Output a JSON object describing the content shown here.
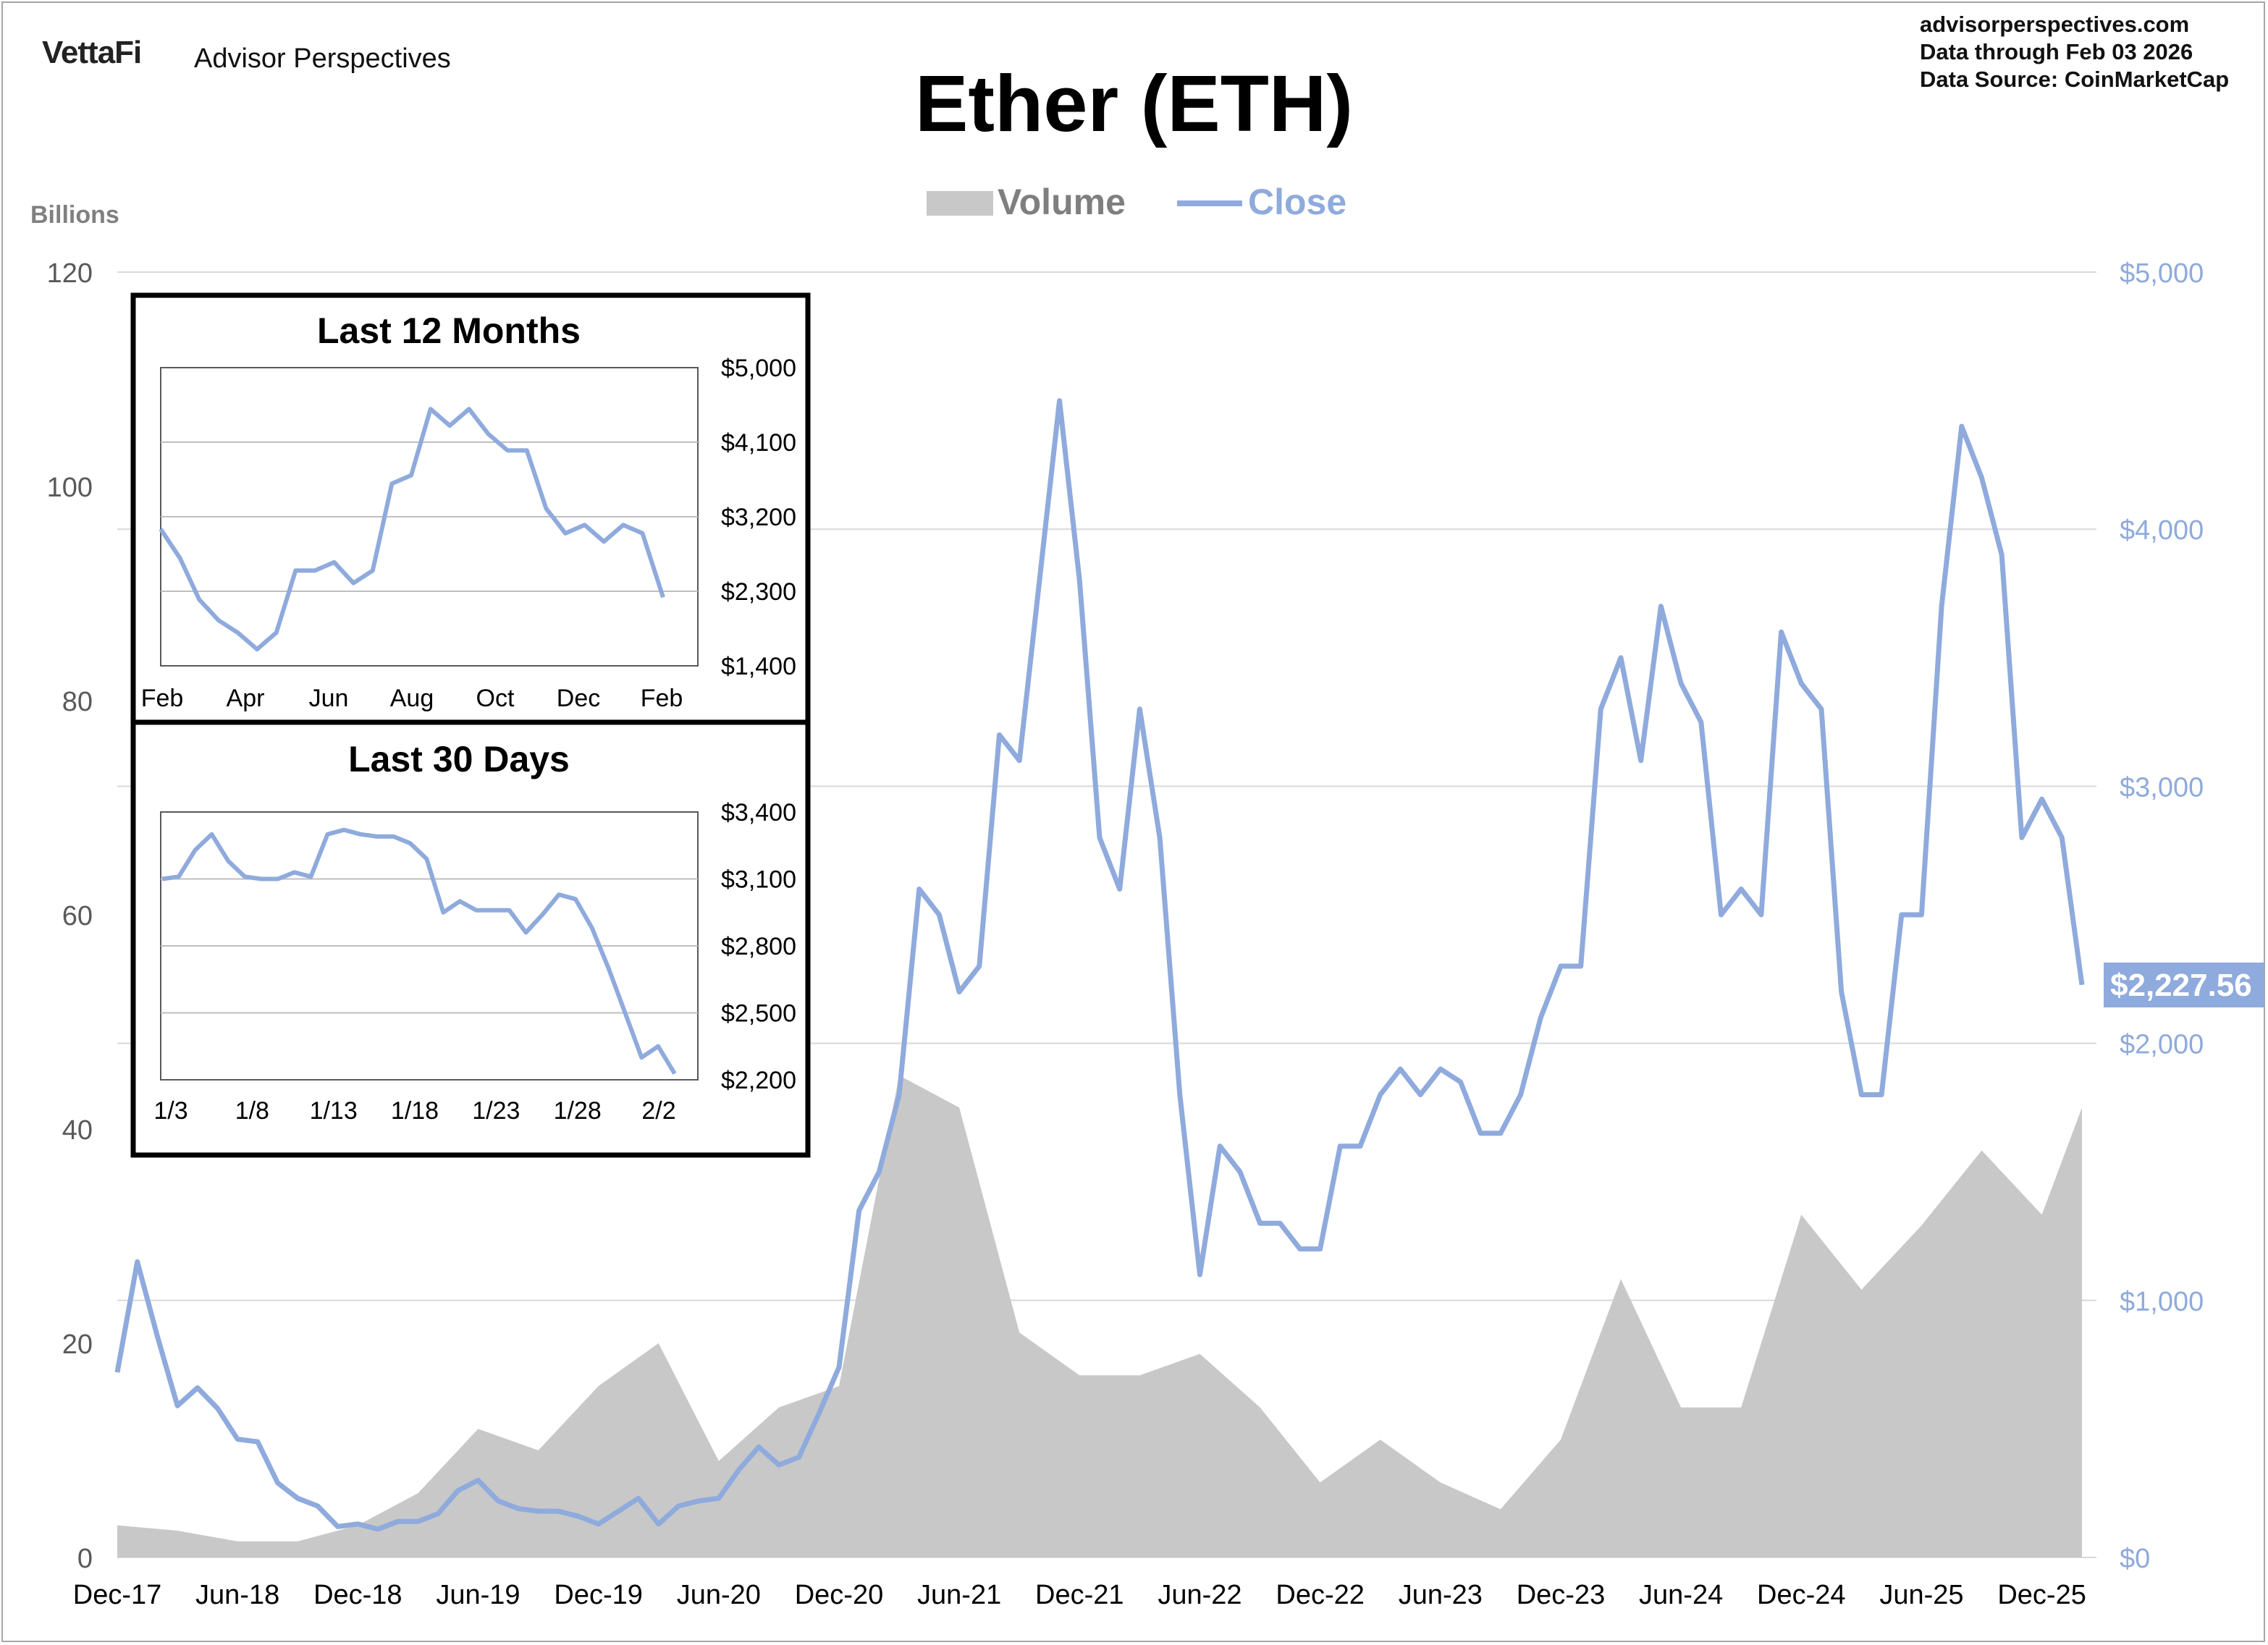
{
  "header": {
    "brand": "VettaFi",
    "brand_sub": "Advisor Perspectives",
    "site": "advisorperspectives.com",
    "data_through": "Data through  Feb 03 2026",
    "data_source": "Data Source:  CoinMarketCap",
    "title": "Ether (ETH)"
  },
  "colors": {
    "close": "#8faadc",
    "volume": "#c8c8c8",
    "grid": "#d9d9d9",
    "left_axis_text": "#595959",
    "price_flag": "#8faadc"
  },
  "chart_data": [
    {
      "type": "line",
      "title": "Ether (ETH)",
      "ylabel": "Billions",
      "legend": [
        "Volume",
        "Close"
      ],
      "legend_position": "top-center",
      "x_ticks": [
        "Dec-17",
        "Jun-18",
        "Dec-18",
        "Jun-19",
        "Dec-19",
        "Jun-20",
        "Dec-20",
        "Jun-21",
        "Dec-21",
        "Jun-22",
        "Dec-22",
        "Jun-23",
        "Dec-23",
        "Jun-24",
        "Dec-24",
        "Jun-25",
        "Dec-25"
      ],
      "y_left": {
        "label": "Billions",
        "ticks": [
          "0",
          "20",
          "40",
          "60",
          "80",
          "100",
          "120"
        ],
        "lim": [
          0,
          120
        ]
      },
      "y_right": {
        "ticks": [
          "$0",
          "$1,000",
          "$2,000",
          "$3,000",
          "$4,000",
          "$5,000"
        ],
        "lim": [
          0,
          5000
        ]
      },
      "last_close_label": "$2,227.56",
      "grid": true,
      "series": [
        {
          "name": "Close",
          "axis": "right",
          "x": [
            "2017-12",
            "2018-01",
            "2018-02",
            "2018-03",
            "2018-04",
            "2018-05",
            "2018-06",
            "2018-07",
            "2018-08",
            "2018-09",
            "2018-10",
            "2018-11",
            "2018-12",
            "2019-01",
            "2019-02",
            "2019-03",
            "2019-04",
            "2019-05",
            "2019-06",
            "2019-07",
            "2019-08",
            "2019-09",
            "2019-10",
            "2019-11",
            "2019-12",
            "2020-01",
            "2020-02",
            "2020-03",
            "2020-04",
            "2020-05",
            "2020-06",
            "2020-07",
            "2020-08",
            "2020-09",
            "2020-10",
            "2020-11",
            "2020-12",
            "2021-01",
            "2021-02",
            "2021-03",
            "2021-04",
            "2021-05",
            "2021-06",
            "2021-07",
            "2021-08",
            "2021-09",
            "2021-10",
            "2021-11",
            "2021-12",
            "2022-01",
            "2022-02",
            "2022-03",
            "2022-04",
            "2022-05",
            "2022-06",
            "2022-07",
            "2022-08",
            "2022-09",
            "2022-10",
            "2022-11",
            "2022-12",
            "2023-01",
            "2023-02",
            "2023-03",
            "2023-04",
            "2023-05",
            "2023-06",
            "2023-07",
            "2023-08",
            "2023-09",
            "2023-10",
            "2023-11",
            "2023-12",
            "2024-01",
            "2024-02",
            "2024-03",
            "2024-04",
            "2024-05",
            "2024-06",
            "2024-07",
            "2024-08",
            "2024-09",
            "2024-10",
            "2024-11",
            "2024-12",
            "2025-01",
            "2025-02",
            "2025-03",
            "2025-04",
            "2025-05",
            "2025-06",
            "2025-07",
            "2025-08",
            "2025-09",
            "2025-10",
            "2025-11",
            "2025-12",
            "2026-01",
            "2026-02"
          ],
          "values": [
            720,
            1150,
            860,
            590,
            660,
            580,
            460,
            450,
            290,
            230,
            200,
            120,
            130,
            110,
            140,
            140,
            170,
            260,
            300,
            220,
            190,
            180,
            180,
            160,
            130,
            180,
            230,
            130,
            200,
            220,
            230,
            340,
            430,
            360,
            390,
            560,
            740,
            1350,
            1500,
            1800,
            2600,
            2500,
            2200,
            2300,
            3200,
            3100,
            3800,
            4500,
            3800,
            2800,
            2600,
            3300,
            2800,
            1800,
            1100,
            1600,
            1500,
            1300,
            1300,
            1200,
            1200,
            1600,
            1600,
            1800,
            1900,
            1800,
            1900,
            1850,
            1650,
            1650,
            1800,
            2100,
            2300,
            2300,
            3300,
            3500,
            3100,
            3700,
            3400,
            3250,
            2500,
            2600,
            2500,
            3600,
            3400,
            3300,
            2200,
            1800,
            1800,
            2500,
            2500,
            3700,
            4400,
            4200,
            3900,
            2800,
            2950,
            2800,
            2227.56
          ]
        },
        {
          "name": "Volume",
          "axis": "left",
          "x": [
            "2017-12",
            "2018-03",
            "2018-06",
            "2018-09",
            "2018-12",
            "2019-03",
            "2019-06",
            "2019-09",
            "2019-12",
            "2020-03",
            "2020-06",
            "2020-09",
            "2020-12",
            "2021-03",
            "2021-06",
            "2021-09",
            "2021-12",
            "2022-03",
            "2022-06",
            "2022-09",
            "2022-12",
            "2023-03",
            "2023-06",
            "2023-09",
            "2023-12",
            "2024-03",
            "2024-06",
            "2024-09",
            "2024-12",
            "2025-03",
            "2025-06",
            "2025-09",
            "2025-12",
            "2026-02"
          ],
          "values": [
            3,
            2.5,
            1.5,
            1.5,
            3,
            6,
            12,
            10,
            16,
            20,
            9,
            14,
            16,
            45,
            42,
            21,
            17,
            17,
            19,
            14,
            7,
            11,
            7,
            4.5,
            11,
            26,
            14,
            14,
            32,
            25,
            31,
            38,
            32,
            42
          ]
        }
      ]
    },
    {
      "type": "line",
      "title": "Last 12 Months",
      "x_ticks": [
        "Feb",
        "Apr",
        "Jun",
        "Aug",
        "Oct",
        "Dec",
        "Feb"
      ],
      "y_ticks": [
        "$5,000",
        "$4,100",
        "$3,200",
        "$2,300",
        "$1,400"
      ],
      "ylim": [
        1400,
        5000
      ],
      "x": [
        "2025-02-03",
        "2025-02-17",
        "2025-03-03",
        "2025-03-17",
        "2025-03-31",
        "2025-04-14",
        "2025-04-28",
        "2025-05-12",
        "2025-05-26",
        "2025-06-09",
        "2025-06-23",
        "2025-07-07",
        "2025-07-21",
        "2025-08-04",
        "2025-08-18",
        "2025-09-01",
        "2025-09-15",
        "2025-09-29",
        "2025-10-13",
        "2025-10-27",
        "2025-11-10",
        "2025-11-24",
        "2025-12-08",
        "2025-12-22",
        "2026-01-05",
        "2026-01-19",
        "2026-02-03"
      ],
      "values": [
        3050,
        2700,
        2200,
        1950,
        1800,
        1600,
        1800,
        2550,
        2550,
        2650,
        2400,
        2550,
        3600,
        3700,
        4500,
        4300,
        4500,
        4200,
        4000,
        4000,
        3300,
        3000,
        3100,
        2900,
        3100,
        3000,
        2227.56
      ]
    },
    {
      "type": "line",
      "title": "Last 30 Days",
      "x_ticks": [
        "1/3",
        "1/8",
        "1/13",
        "1/18",
        "1/23",
        "1/28",
        "2/2"
      ],
      "y_ticks": [
        "$3,400",
        "$3,100",
        "$2,800",
        "$2,500",
        "$2,200"
      ],
      "ylim": [
        2200,
        3400
      ],
      "x": [
        "1/3",
        "1/4",
        "1/5",
        "1/6",
        "1/7",
        "1/8",
        "1/9",
        "1/10",
        "1/11",
        "1/12",
        "1/13",
        "1/14",
        "1/15",
        "1/16",
        "1/17",
        "1/18",
        "1/19",
        "1/20",
        "1/21",
        "1/22",
        "1/23",
        "1/24",
        "1/25",
        "1/26",
        "1/27",
        "1/28",
        "1/29",
        "1/30",
        "1/31",
        "2/1",
        "2/2",
        "2/3"
      ],
      "values": [
        3100,
        3110,
        3230,
        3300,
        3180,
        3110,
        3100,
        3100,
        3130,
        3110,
        3300,
        3320,
        3300,
        3290,
        3290,
        3260,
        3190,
        2950,
        3000,
        2960,
        2960,
        2960,
        2860,
        2940,
        3030,
        3010,
        2880,
        2700,
        2500,
        2300,
        2350,
        2227.56
      ]
    }
  ]
}
